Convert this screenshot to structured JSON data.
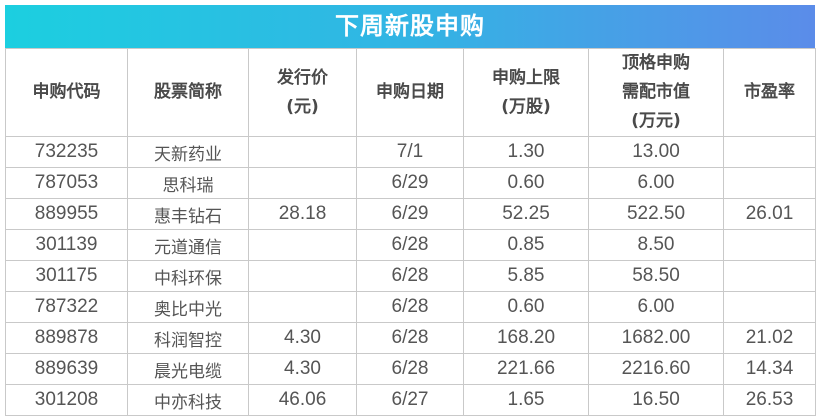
{
  "title": "下周新股申购",
  "colors": {
    "title_gradient_start": "#1ccfe0",
    "title_gradient_end": "#5b8ce9",
    "border": "#c9c9c9"
  },
  "columns": [
    [
      "申购代码"
    ],
    [
      "股票简称"
    ],
    [
      "发行价",
      "(元)"
    ],
    [
      "申购日期"
    ],
    [
      "申购上限",
      "(万股)"
    ],
    [
      "顶格申购",
      "需配市值",
      "(万元)"
    ],
    [
      "市盈率"
    ]
  ],
  "rows": [
    [
      "732235",
      "天新药业",
      "",
      "7/1",
      "1.30",
      "13.00",
      ""
    ],
    [
      "787053",
      "思科瑞",
      "",
      "6/29",
      "0.60",
      "6.00",
      ""
    ],
    [
      "889955",
      "惠丰钻石",
      "28.18",
      "6/29",
      "52.25",
      "522.50",
      "26.01"
    ],
    [
      "301139",
      "元道通信",
      "",
      "6/28",
      "0.85",
      "8.50",
      ""
    ],
    [
      "301175",
      "中科环保",
      "",
      "6/28",
      "5.85",
      "58.50",
      ""
    ],
    [
      "787322",
      "奥比中光",
      "",
      "6/28",
      "0.60",
      "6.00",
      ""
    ],
    [
      "889878",
      "科润智控",
      "4.30",
      "6/28",
      "168.20",
      "1682.00",
      "21.02"
    ],
    [
      "889639",
      "晨光电缆",
      "4.30",
      "6/28",
      "221.66",
      "2216.60",
      "14.34"
    ],
    [
      "301208",
      "中亦科技",
      "46.06",
      "6/27",
      "1.65",
      "16.50",
      "26.53"
    ]
  ]
}
